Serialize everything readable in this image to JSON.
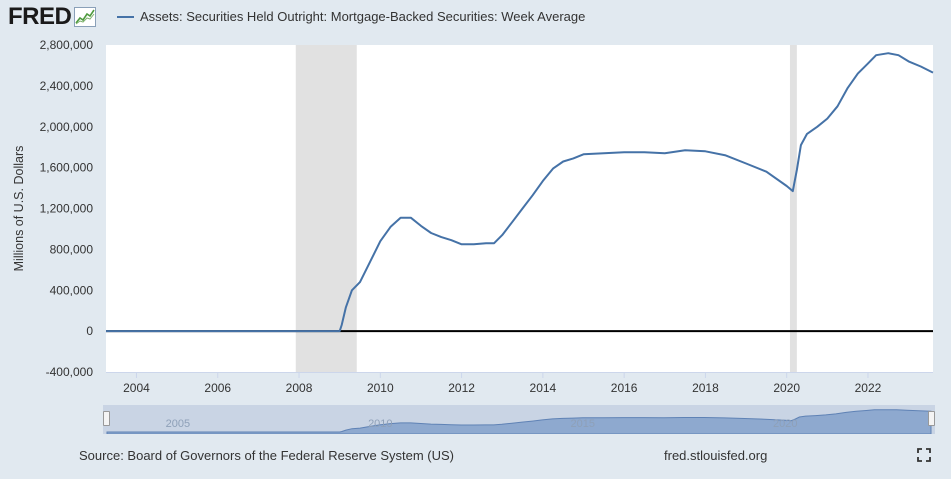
{
  "header": {
    "logo_text": "FRED",
    "logo_icon": "chart-line-icon",
    "series_title": "Assets: Securities Held Outright: Mortgage-Backed Securities: Week Average"
  },
  "colors": {
    "background": "#e1e9f0",
    "plot_background": "#ffffff",
    "series_line": "#4572a7",
    "recession_band": "#e1e1e1",
    "navigator_fill": "#8ea9cf"
  },
  "chart_data": {
    "type": "line",
    "title": "Assets: Securities Held Outright: Mortgage-Backed Securities: Week Average",
    "xlabel": "",
    "ylabel": "Millions of U.S. Dollars",
    "xlim": [
      2003.25,
      2023.6
    ],
    "ylim": [
      -400000,
      2800000
    ],
    "y_ticks": [
      -400000,
      0,
      400000,
      800000,
      1200000,
      1600000,
      2000000,
      2400000,
      2800000
    ],
    "y_tick_labels": [
      "-400,000",
      "0",
      "400,000",
      "800,000",
      "1,200,000",
      "1,600,000",
      "2,000,000",
      "2,400,000",
      "2,800,000"
    ],
    "x_ticks": [
      2004,
      2006,
      2008,
      2010,
      2012,
      2014,
      2016,
      2018,
      2020,
      2022
    ],
    "x_tick_labels": [
      "2004",
      "2006",
      "2008",
      "2010",
      "2012",
      "2014",
      "2016",
      "2018",
      "2020",
      "2022"
    ],
    "grid": false,
    "zero_line": true,
    "recessions": [
      [
        2007.92,
        2009.42
      ],
      [
        2020.08,
        2020.25
      ]
    ],
    "series": [
      {
        "name": "Assets: Securities Held Outright: Mortgage-Backed Securities: Week Average",
        "x": [
          2003.25,
          2009.0,
          2009.05,
          2009.15,
          2009.3,
          2009.5,
          2009.75,
          2010.0,
          2010.25,
          2010.5,
          2010.75,
          2011.0,
          2011.25,
          2011.5,
          2011.75,
          2012.0,
          2012.3,
          2012.6,
          2012.8,
          2013.0,
          2013.25,
          2013.5,
          2013.75,
          2014.0,
          2014.25,
          2014.5,
          2014.75,
          2015.0,
          2015.5,
          2016.0,
          2016.5,
          2017.0,
          2017.5,
          2018.0,
          2018.5,
          2019.0,
          2019.5,
          2020.0,
          2020.15,
          2020.25,
          2020.35,
          2020.5,
          2020.75,
          2021.0,
          2021.25,
          2021.5,
          2021.75,
          2022.0,
          2022.2,
          2022.5,
          2022.75,
          2023.0,
          2023.3,
          2023.6
        ],
        "y": [
          0,
          0,
          60000,
          230000,
          400000,
          480000,
          680000,
          880000,
          1020000,
          1110000,
          1110000,
          1030000,
          960000,
          920000,
          890000,
          850000,
          850000,
          860000,
          860000,
          940000,
          1070000,
          1200000,
          1330000,
          1470000,
          1590000,
          1660000,
          1690000,
          1730000,
          1740000,
          1750000,
          1750000,
          1740000,
          1770000,
          1760000,
          1720000,
          1640000,
          1560000,
          1420000,
          1370000,
          1580000,
          1820000,
          1930000,
          2000000,
          2080000,
          2200000,
          2380000,
          2520000,
          2620000,
          2700000,
          2720000,
          2700000,
          2640000,
          2590000,
          2530000
        ]
      }
    ]
  },
  "navigator": {
    "labels": [
      "2005",
      "2010",
      "2015",
      "2020"
    ]
  },
  "footer": {
    "source": "Source: Board of Governors of the Federal Reserve System (US)",
    "site": "fred.stlouisfed.org",
    "fullscreen_icon": "fullscreen-icon"
  }
}
